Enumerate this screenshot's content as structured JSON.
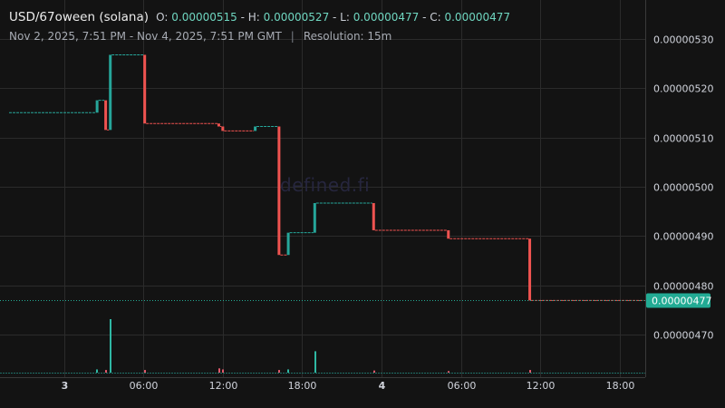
{
  "header": {
    "pair": "USD/67oween (solana)",
    "open_label": "O:",
    "open": "0.00000515",
    "high_label": "H:",
    "high": "0.00000527",
    "low_label": "L:",
    "low": "0.00000477",
    "close_label": "C:",
    "close": "0.00000477",
    "range": "Nov 2, 2025, 7:51 PM - Nov 4, 2025, 7:51 PM GMT",
    "separator": "|",
    "resolution": "Resolution: 15m"
  },
  "watermark": "defined.fi",
  "colors": {
    "background": "#131313",
    "up": "#26a69a",
    "down": "#ef5350",
    "grid": "#2b2b2b",
    "price_tag": "#22ab94",
    "axis_text": "#d1d4dc"
  },
  "chart_data": {
    "type": "candlestick",
    "grid": true,
    "price_scale_position": "right",
    "y_ticks": [
      "0.00000530",
      "0.00000520",
      "0.00000510",
      "0.00000500",
      "0.00000490",
      "0.00000480",
      "0.00000470"
    ],
    "y_tick_values": [
      5.3,
      5.2,
      5.1,
      5.0,
      4.9,
      4.8,
      4.7
    ],
    "y_unit_note": "values in 1e-6",
    "x_ticks": [
      {
        "label": "3",
        "hour": 4.15,
        "bold": true
      },
      {
        "label": "06:00",
        "hour": 10.15
      },
      {
        "label": "12:00",
        "hour": 16.15
      },
      {
        "label": "18:00",
        "hour": 22.15
      },
      {
        "label": "4",
        "hour": 28.15,
        "bold": true
      },
      {
        "label": "06:00",
        "hour": 34.15
      },
      {
        "label": "12:00",
        "hour": 40.15
      },
      {
        "label": "18:00",
        "hour": 46.15
      }
    ],
    "last_price": {
      "label": "0.00000477",
      "value": 4.77
    },
    "candles": [
      {
        "start": 0.0,
        "end": 6.55,
        "o": 5.15,
        "c": 5.15,
        "h": 5.15,
        "l": 5.15
      },
      {
        "start": 6.55,
        "end": 7.2,
        "o": 5.15,
        "c": 5.175,
        "h": 5.175,
        "l": 5.15
      },
      {
        "start": 7.2,
        "end": 7.55,
        "o": 5.175,
        "c": 5.115,
        "h": 5.175,
        "l": 5.115
      },
      {
        "start": 7.55,
        "end": 10.15,
        "o": 5.115,
        "c": 5.267,
        "h": 5.267,
        "l": 5.115
      },
      {
        "start": 10.15,
        "end": 15.75,
        "o": 5.267,
        "c": 5.128,
        "h": 5.267,
        "l": 5.128
      },
      {
        "start": 15.75,
        "end": 16.05,
        "o": 5.128,
        "c": 5.122,
        "h": 5.128,
        "l": 5.122
      },
      {
        "start": 16.05,
        "end": 18.5,
        "o": 5.122,
        "c": 5.113,
        "h": 5.122,
        "l": 5.113
      },
      {
        "start": 18.5,
        "end": 20.3,
        "o": 5.113,
        "c": 5.122,
        "h": 5.122,
        "l": 5.113
      },
      {
        "start": 20.3,
        "end": 21.0,
        "o": 5.122,
        "c": 4.862,
        "h": 5.122,
        "l": 4.862
      },
      {
        "start": 21.0,
        "end": 23.0,
        "o": 4.862,
        "c": 4.907,
        "h": 4.907,
        "l": 4.862
      },
      {
        "start": 23.0,
        "end": 27.45,
        "o": 4.907,
        "c": 4.967,
        "h": 4.967,
        "l": 4.907
      },
      {
        "start": 27.45,
        "end": 33.1,
        "o": 4.967,
        "c": 4.912,
        "h": 4.967,
        "l": 4.912
      },
      {
        "start": 33.1,
        "end": 39.25,
        "o": 4.912,
        "c": 4.895,
        "h": 4.912,
        "l": 4.895
      },
      {
        "start": 39.25,
        "end": 48.0,
        "o": 4.895,
        "c": 4.77,
        "h": 4.895,
        "l": 4.77
      }
    ],
    "volume": [
      {
        "hour": 6.6,
        "v": 0.06,
        "dir": "up"
      },
      {
        "hour": 7.25,
        "v": 0.05,
        "dir": "down"
      },
      {
        "hour": 7.6,
        "v": 1.0,
        "dir": "up"
      },
      {
        "hour": 10.2,
        "v": 0.05,
        "dir": "down"
      },
      {
        "hour": 15.8,
        "v": 0.08,
        "dir": "down"
      },
      {
        "hour": 16.1,
        "v": 0.06,
        "dir": "down"
      },
      {
        "hour": 20.35,
        "v": 0.05,
        "dir": "down"
      },
      {
        "hour": 21.05,
        "v": 0.06,
        "dir": "up"
      },
      {
        "hour": 23.05,
        "v": 0.4,
        "dir": "up"
      },
      {
        "hour": 27.5,
        "v": 0.04,
        "dir": "down"
      },
      {
        "hour": 33.15,
        "v": 0.03,
        "dir": "down"
      },
      {
        "hour": 39.3,
        "v": 0.05,
        "dir": "down"
      }
    ]
  }
}
